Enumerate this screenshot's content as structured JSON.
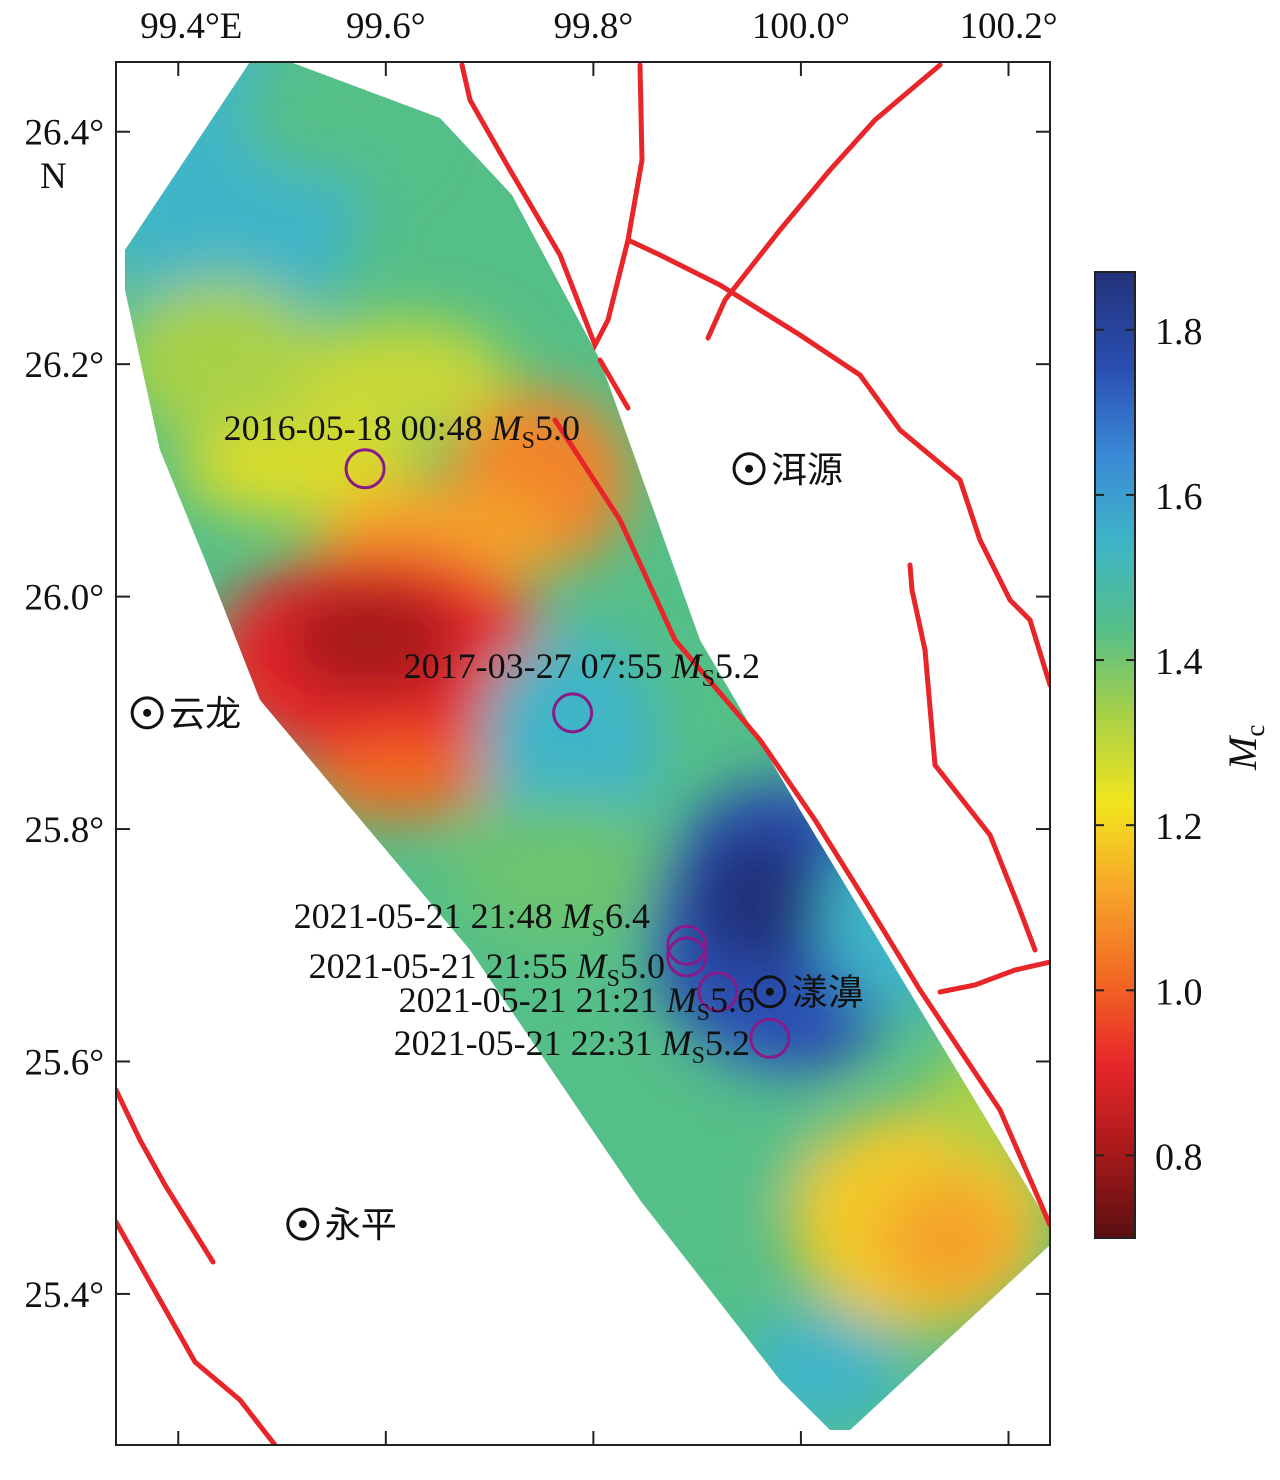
{
  "axes": {
    "x_ticks": [
      {
        "label": "99.4°E",
        "lon": 99.4
      },
      {
        "label": "99.6°",
        "lon": 99.6
      },
      {
        "label": "99.8°",
        "lon": 99.8
      },
      {
        "label": "100.0°",
        "lon": 100.0
      },
      {
        "label": "100.2°",
        "lon": 100.2
      }
    ],
    "y_ticks": [
      {
        "label": "26.4°",
        "lat": 26.4
      },
      {
        "label": "26.2°",
        "lat": 26.2
      },
      {
        "label": "26.0°",
        "lat": 26.0
      },
      {
        "label": "25.8°",
        "lat": 25.8
      },
      {
        "label": "25.6°",
        "lat": 25.6
      },
      {
        "label": "25.4°",
        "lat": 25.4
      }
    ],
    "y_unit_label": "N",
    "lon_range": [
      99.34,
      100.24
    ],
    "lat_range": [
      25.27,
      26.46
    ]
  },
  "colorbar": {
    "label_main": "M",
    "label_sub": "c",
    "range": [
      0.7,
      1.87
    ],
    "ticks": [
      "0.8",
      "1.0",
      "1.2",
      "1.4",
      "1.6",
      "1.8"
    ],
    "colormap": [
      "#5a0f12",
      "#a81a1a",
      "#e8262a",
      "#f26a22",
      "#f7a52b",
      "#f2e51e",
      "#a9d146",
      "#55bf88",
      "#3fb5c7",
      "#3a8ad6",
      "#2a4fb2",
      "#23337a"
    ]
  },
  "cities": [
    {
      "name": "洱源",
      "lon": 99.95,
      "lat": 26.11
    },
    {
      "name": "云龙",
      "lon": 99.37,
      "lat": 25.9
    },
    {
      "name": "漾濞",
      "lon": 99.97,
      "lat": 25.66
    },
    {
      "name": "永平",
      "lon": 99.52,
      "lat": 25.46
    }
  ],
  "earthquakes": [
    {
      "date": "2016-05-18 00:48",
      "mag_prefix": "M",
      "mag_sub": "S",
      "mag": "5.0",
      "lon": 99.58,
      "lat": 26.11
    },
    {
      "date": "2017-03-27 07:55",
      "mag_prefix": "M",
      "mag_sub": "S",
      "mag": "5.2",
      "lon": 99.78,
      "lat": 25.9
    },
    {
      "date": "2021-05-21 21:48",
      "mag_prefix": "M",
      "mag_sub": "S",
      "mag": "6.4",
      "lon": 99.89,
      "lat": 25.7
    },
    {
      "date": "2021-05-21 21:55",
      "mag_prefix": "M",
      "mag_sub": "S",
      "mag": "5.0",
      "lon": 99.89,
      "lat": 25.69
    },
    {
      "date": "2021-05-21 21:21",
      "mag_prefix": "M",
      "mag_sub": "S",
      "mag": "5.6",
      "lon": 99.92,
      "lat": 25.66
    },
    {
      "date": "2021-05-21 22:31",
      "mag_prefix": "M",
      "mag_sub": "S",
      "mag": "5.2",
      "lon": 99.97,
      "lat": 25.62
    }
  ],
  "colors": {
    "fault": "#e8262a",
    "epicenter": "#8a1a8a",
    "axis": "#222222"
  }
}
